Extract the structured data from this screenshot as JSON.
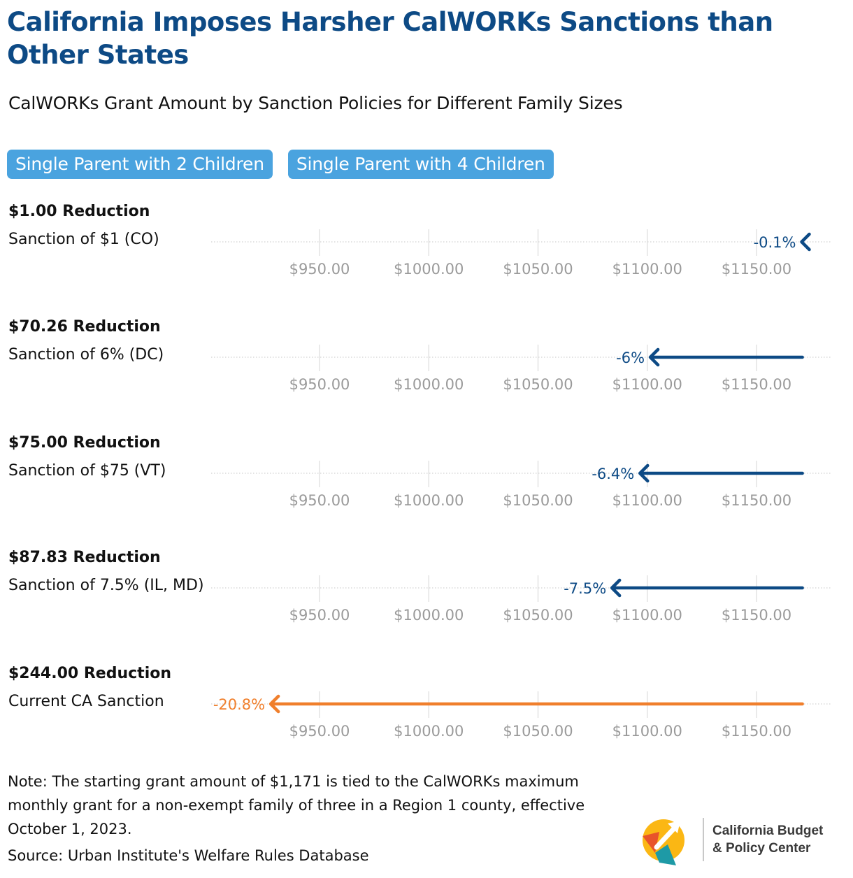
{
  "title": "California Imposes Harsher CalWORKs Sanctions than Other States",
  "subtitle": "CalWORKs Grant Amount by Sanction Policies for Different Family Sizes",
  "tabs": [
    {
      "label": "Single Parent with 2 Children"
    },
    {
      "label": "Single Parent with 4 Children"
    }
  ],
  "colors": {
    "title": "#0d4a85",
    "tab_bg": "#4aa3df",
    "other_states": "#0d4a85",
    "california": "#f07f2c",
    "axis_text": "#9a9a9a",
    "grid": "#d2d2d2"
  },
  "chart_data": {
    "type": "arrow",
    "start_value": 1171,
    "x_ticks": [
      950,
      1000,
      1050,
      1100,
      1150
    ],
    "x_tick_labels": [
      "$950.00",
      "$1000.00",
      "$1050.00",
      "$1100.00",
      "$1150.00"
    ],
    "xlim": [
      900,
      1185
    ],
    "panels": [
      {
        "amount": "$1.00 Reduction",
        "label": "Sanction of $1 (CO)",
        "reduction": 1.0,
        "end_value": 1170,
        "pct_label": "-0.1%",
        "highlight": false
      },
      {
        "amount": "$70.26 Reduction",
        "label": "Sanction of 6% (DC)",
        "reduction": 70.26,
        "end_value": 1100.74,
        "pct_label": "-6%",
        "highlight": false
      },
      {
        "amount": "$75.00 Reduction",
        "label": "Sanction of $75 (VT)",
        "reduction": 75.0,
        "end_value": 1096,
        "pct_label": "-6.4%",
        "highlight": false
      },
      {
        "amount": "$87.83 Reduction",
        "label": "Sanction of 7.5% (IL, MD)",
        "reduction": 87.83,
        "end_value": 1083.17,
        "pct_label": "-7.5%",
        "highlight": false
      },
      {
        "amount": "$244.00 Reduction",
        "label": "Current CA Sanction",
        "reduction": 244.0,
        "end_value": 927,
        "pct_label": "-20.8%",
        "highlight": true
      }
    ]
  },
  "note": "Note: The starting grant amount of $1,171 is tied to the CalWORKs maximum monthly grant for a non-exempt family of three in a Region 1 county, effective October 1, 2023.",
  "source": "Source: Urban Institute's Welfare Rules Database",
  "logo": {
    "line1": "California Budget",
    "line2": "& Policy Center",
    "icon": "cbpc-logo-icon"
  }
}
